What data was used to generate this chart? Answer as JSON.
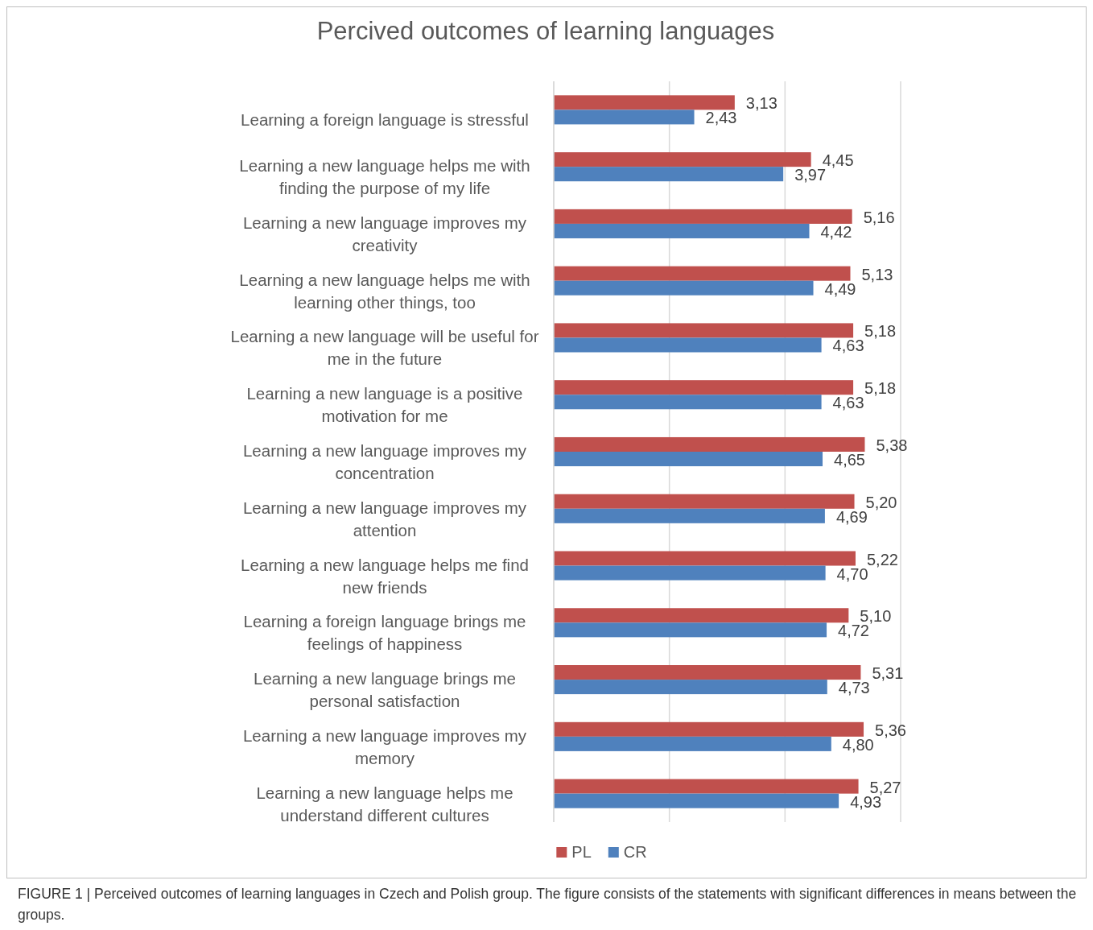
{
  "chart_data": {
    "type": "bar",
    "orientation": "horizontal",
    "title": "Percived outcomes of learning languages",
    "categories": [
      "Learning a foreign language is stressful",
      "Learning a new language helps me with finding the purpose of my life",
      "Learning a new language improves my creativity",
      "Learning a new language helps me with learning other things, too",
      "Learning a new language will be useful for me in the future",
      "Learning a new language is a positive motivation for me",
      "Learning a new language improves my concentration",
      "Learning a new language improves my attention",
      "Learning a new language helps me find new friends",
      "Learning a foreign language brings me feelings of happiness",
      "Learning a new language brings me personal satisfaction",
      "Learning a new language improves my memory",
      "Learning a new language helps me understand different cultures"
    ],
    "series": [
      {
        "name": "PL",
        "color": "#c0504d",
        "values": [
          3.13,
          4.45,
          5.16,
          5.13,
          5.18,
          5.18,
          5.38,
          5.2,
          5.22,
          5.1,
          5.31,
          5.36,
          5.27
        ],
        "value_labels": [
          "3,13",
          "4,45",
          "5,16",
          "5,13",
          "5,18",
          "5,18",
          "5,38",
          "5,20",
          "5,22",
          "5,10",
          "5,31",
          "5,36",
          "5,27"
        ]
      },
      {
        "name": "CR",
        "color": "#4f81bd",
        "values": [
          2.43,
          3.97,
          4.42,
          4.49,
          4.63,
          4.63,
          4.65,
          4.69,
          4.7,
          4.72,
          4.73,
          4.8,
          4.93
        ],
        "value_labels": [
          "2,43",
          "3,97",
          "4,42",
          "4,49",
          "4,63",
          "4,63",
          "4,65",
          "4,69",
          "4,70",
          "4,72",
          "4,73",
          "4,80",
          "4,93"
        ]
      }
    ],
    "xlim": [
      0,
      6
    ],
    "xticks": [
      {
        "value": 0,
        "label": null
      },
      {
        "value": 2,
        "label": null
      },
      {
        "value": 4,
        "label": null
      },
      {
        "value": 6,
        "label": null
      }
    ],
    "tick_labels": "y",
    "grid": "x",
    "legend": "bottom",
    "annotations": [
      "FIGURE 1 | Perceived outcomes of learning languages in Czech and Polish group. The figure consists of the statements with significant differences in means between the groups."
    ]
  }
}
